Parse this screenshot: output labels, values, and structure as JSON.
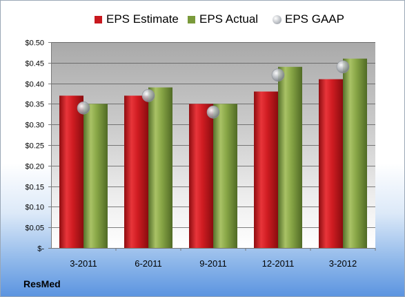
{
  "chart_data": {
    "type": "bar",
    "categories": [
      "3-2011",
      "6-2011",
      "9-2011",
      "12-2011",
      "3-2012"
    ],
    "series": [
      {
        "name": "EPS Estimate",
        "type": "bar",
        "values": [
          0.37,
          0.37,
          0.35,
          0.38,
          0.41
        ],
        "color": "#c8181e"
      },
      {
        "name": "EPS Actual",
        "type": "bar",
        "values": [
          0.35,
          0.39,
          0.35,
          0.44,
          0.46
        ],
        "color": "#7a9a3a"
      },
      {
        "name": "EPS GAAP",
        "type": "scatter",
        "values": [
          0.34,
          0.37,
          0.33,
          0.42,
          0.44
        ],
        "color": "#b8bcc2"
      }
    ],
    "ylim": [
      0,
      0.5
    ],
    "yticks": [
      0,
      0.05,
      0.1,
      0.15,
      0.2,
      0.25,
      0.3,
      0.35,
      0.4,
      0.45,
      0.5
    ],
    "ytick_labels": [
      "$-",
      "$0.05",
      "$0.10",
      "$0.15",
      "$0.20",
      "$0.25",
      "$0.30",
      "$0.35",
      "$0.40",
      "$0.45",
      "$0.50"
    ],
    "grid": true,
    "legend_position": "top"
  },
  "footer": {
    "label": "ResMed"
  }
}
